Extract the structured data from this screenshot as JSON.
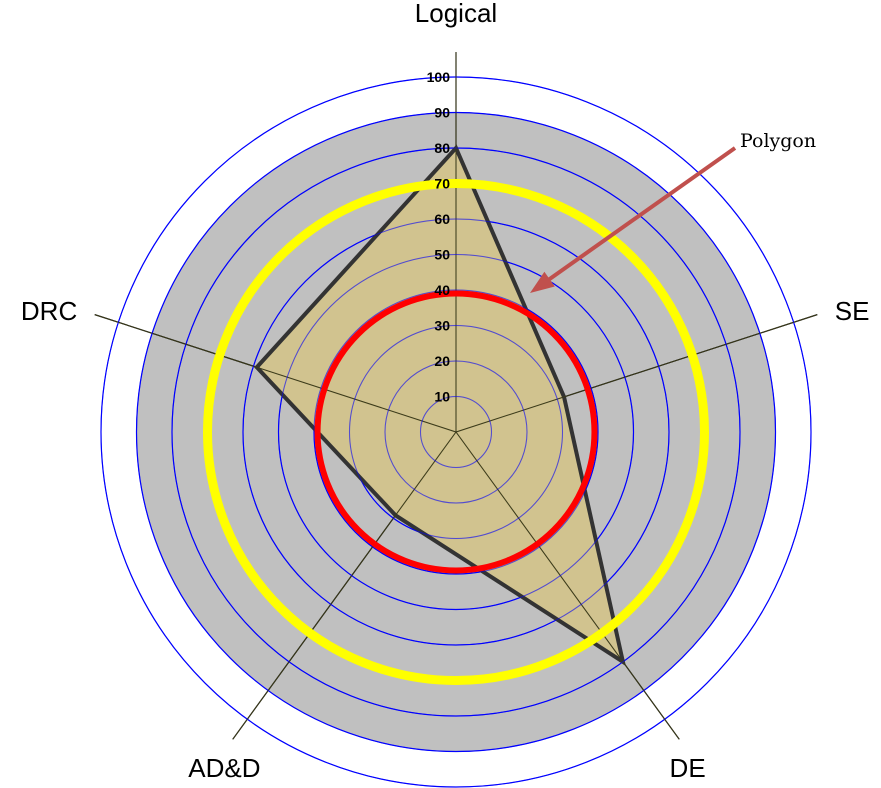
{
  "chart_data": {
    "type": "radar",
    "axes": [
      "Logical",
      "SE",
      "DE",
      "AD&D",
      "DRC"
    ],
    "values": [
      80,
      32,
      80,
      29,
      59
    ],
    "rmax": 107,
    "ticks": [
      10,
      20,
      30,
      40,
      50,
      60,
      70,
      80,
      90,
      100
    ],
    "tick_labels": [
      "10",
      "20",
      "30",
      "40",
      "50",
      "60",
      "70",
      "80",
      "90",
      "100"
    ],
    "shaded_band": [
      0,
      90
    ],
    "yellow_ring": 70,
    "red_ring": 39,
    "annotation": "Polygon",
    "colors": {
      "band": "#c0c0c0",
      "ring": "#0000ff",
      "yellow": "#ffff00",
      "red": "#ff0000",
      "polygon_fill": "#d4c386",
      "polygon_stroke": "#333333",
      "arrow": "#c0504d"
    }
  }
}
